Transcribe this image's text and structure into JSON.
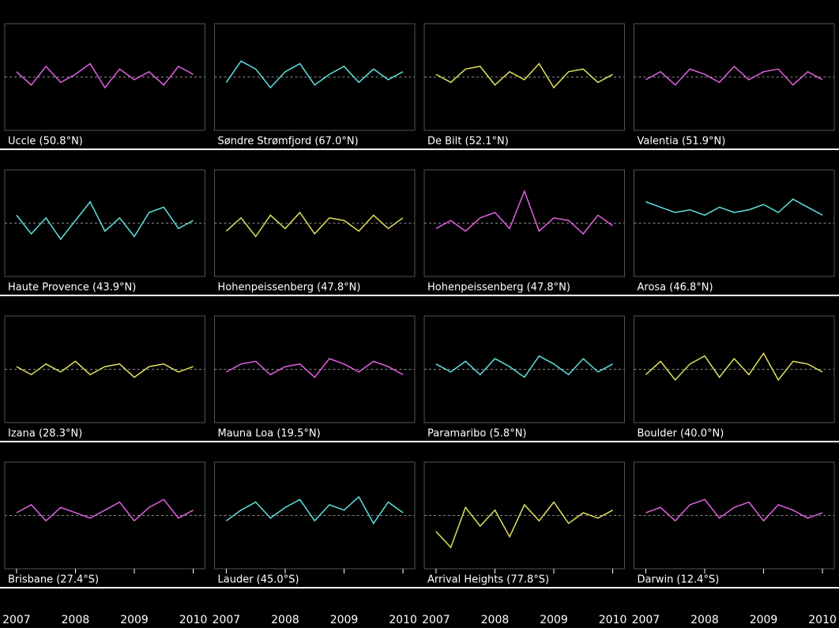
{
  "chart_data": [
    {
      "type": "line",
      "title": "Uccle (50.8°N)",
      "x": [
        2007,
        2007.25,
        2007.5,
        2007.75,
        2008,
        2008.25,
        2008.5,
        2008.75,
        2009,
        2009.25,
        2009.5,
        2009.75,
        2010
      ],
      "values": [
        2,
        -3,
        4,
        -2,
        1,
        5,
        -4,
        3,
        -1,
        2,
        -3,
        4,
        1
      ],
      "color": "#e060e0",
      "xlim": [
        2006.8,
        2010.2
      ],
      "ylim": [
        -20,
        20
      ]
    },
    {
      "type": "line",
      "title": "Søndre Strømfjord (67.0°N)",
      "x": [
        2007,
        2007.25,
        2007.5,
        2007.75,
        2008,
        2008.25,
        2008.5,
        2008.75,
        2009,
        2009.25,
        2009.5,
        2009.75,
        2010
      ],
      "values": [
        -2,
        6,
        3,
        -4,
        2,
        5,
        -3,
        1,
        4,
        -2,
        3,
        -1,
        2
      ],
      "color": "#60e0e0",
      "xlim": [
        2006.8,
        2010.2
      ],
      "ylim": [
        -20,
        20
      ]
    },
    {
      "type": "line",
      "title": "De Bilt (52.1°N)",
      "x": [
        2007,
        2007.25,
        2007.5,
        2007.75,
        2008,
        2008.25,
        2008.5,
        2008.75,
        2009,
        2009.25,
        2009.5,
        2009.75,
        2010
      ],
      "values": [
        1,
        -2,
        3,
        4,
        -3,
        2,
        -1,
        5,
        -4,
        2,
        3,
        -2,
        1
      ],
      "color": "#e0e060",
      "xlim": [
        2006.8,
        2010.2
      ],
      "ylim": [
        -20,
        20
      ]
    },
    {
      "type": "line",
      "title": "Valentia (51.9°N)",
      "x": [
        2007,
        2007.25,
        2007.5,
        2007.75,
        2008,
        2008.25,
        2008.5,
        2008.75,
        2009,
        2009.25,
        2009.5,
        2009.75,
        2010
      ],
      "values": [
        -1,
        2,
        -3,
        3,
        1,
        -2,
        4,
        -1,
        2,
        3,
        -3,
        2,
        -1
      ],
      "color": "#e060e0",
      "xlim": [
        2006.8,
        2010.2
      ],
      "ylim": [
        -20,
        20
      ]
    },
    {
      "type": "line",
      "title": "Haute Provence (43.9°N)",
      "x": [
        2007,
        2007.25,
        2007.5,
        2007.75,
        2008,
        2008.25,
        2008.5,
        2008.75,
        2009,
        2009.25,
        2009.5,
        2009.75,
        2010
      ],
      "values": [
        3,
        -4,
        2,
        -6,
        1,
        8,
        -3,
        2,
        -5,
        4,
        6,
        -2,
        1
      ],
      "color": "#60e0e0",
      "xlim": [
        2006.8,
        2010.2
      ],
      "ylim": [
        -20,
        20
      ]
    },
    {
      "type": "line",
      "title": "Hohenpeissenberg (47.8°N)",
      "x": [
        2007,
        2007.25,
        2007.5,
        2007.75,
        2008,
        2008.25,
        2008.5,
        2008.75,
        2009,
        2009.25,
        2009.5,
        2009.75,
        2010
      ],
      "values": [
        -3,
        2,
        -5,
        3,
        -2,
        4,
        -4,
        2,
        1,
        -3,
        3,
        -2,
        2
      ],
      "color": "#e0e060",
      "xlim": [
        2006.8,
        2010.2
      ],
      "ylim": [
        -20,
        20
      ]
    },
    {
      "type": "line",
      "title": "Hohenpeissenberg (47.8°N)",
      "x": [
        2007,
        2007.25,
        2007.5,
        2007.75,
        2008,
        2008.25,
        2008.5,
        2008.75,
        2009,
        2009.25,
        2009.5,
        2009.75,
        2010
      ],
      "values": [
        -2,
        1,
        -3,
        2,
        4,
        -2,
        12,
        -3,
        2,
        1,
        -4,
        3,
        -1
      ],
      "color": "#e060e0",
      "xlim": [
        2006.8,
        2010.2
      ],
      "ylim": [
        -20,
        20
      ]
    },
    {
      "type": "line",
      "title": "Arosa (46.8°N)",
      "x": [
        2007,
        2007.25,
        2007.5,
        2007.75,
        2008,
        2008.25,
        2008.5,
        2008.75,
        2009,
        2009.25,
        2009.5,
        2009.75,
        2010
      ],
      "values": [
        8,
        6,
        4,
        5,
        3,
        6,
        4,
        5,
        7,
        4,
        9,
        6,
        3
      ],
      "color": "#60e0e0",
      "xlim": [
        2006.8,
        2010.2
      ],
      "ylim": [
        -20,
        20
      ]
    },
    {
      "type": "line",
      "title": "Izana (28.3°N)",
      "x": [
        2007,
        2007.25,
        2007.5,
        2007.75,
        2008,
        2008.25,
        2008.5,
        2008.75,
        2009,
        2009.25,
        2009.5,
        2009.75,
        2010
      ],
      "values": [
        1,
        -2,
        2,
        -1,
        3,
        -2,
        1,
        2,
        -3,
        1,
        2,
        -1,
        1
      ],
      "color": "#e0e060",
      "xlim": [
        2006.8,
        2010.2
      ],
      "ylim": [
        -20,
        20
      ]
    },
    {
      "type": "line",
      "title": "Mauna Loa (19.5°N)",
      "x": [
        2007,
        2007.25,
        2007.5,
        2007.75,
        2008,
        2008.25,
        2008.5,
        2008.75,
        2009,
        2009.25,
        2009.5,
        2009.75,
        2010
      ],
      "values": [
        -1,
        2,
        3,
        -2,
        1,
        2,
        -3,
        4,
        2,
        -1,
        3,
        1,
        -2
      ],
      "color": "#e060e0",
      "xlim": [
        2006.8,
        2010.2
      ],
      "ylim": [
        -20,
        20
      ]
    },
    {
      "type": "line",
      "title": "Paramaribo (5.8°N)",
      "x": [
        2007,
        2007.25,
        2007.5,
        2007.75,
        2008,
        2008.25,
        2008.5,
        2008.75,
        2009,
        2009.25,
        2009.5,
        2009.75,
        2010
      ],
      "values": [
        2,
        -1,
        3,
        -2,
        4,
        1,
        -3,
        5,
        2,
        -2,
        4,
        -1,
        2
      ],
      "color": "#60e0e0",
      "xlim": [
        2006.8,
        2010.2
      ],
      "ylim": [
        -20,
        20
      ]
    },
    {
      "type": "line",
      "title": "Boulder (40.0°N)",
      "x": [
        2007,
        2007.25,
        2007.5,
        2007.75,
        2008,
        2008.25,
        2008.5,
        2008.75,
        2009,
        2009.25,
        2009.5,
        2009.75,
        2010
      ],
      "values": [
        -2,
        3,
        -4,
        2,
        5,
        -3,
        4,
        -2,
        6,
        -4,
        3,
        2,
        -1
      ],
      "color": "#e0e060",
      "xlim": [
        2006.8,
        2010.2
      ],
      "ylim": [
        -20,
        20
      ]
    },
    {
      "type": "line",
      "title": "Brisbane (27.4°S)",
      "x": [
        2007,
        2007.25,
        2007.5,
        2007.75,
        2008,
        2008.25,
        2008.5,
        2008.75,
        2009,
        2009.25,
        2009.5,
        2009.75,
        2010
      ],
      "values": [
        1,
        4,
        -2,
        3,
        1,
        -1,
        2,
        5,
        -2,
        3,
        6,
        -1,
        2
      ],
      "color": "#e060e0",
      "xlim": [
        2006.8,
        2010.2
      ],
      "ylim": [
        -20,
        20
      ],
      "xticks": [
        2007,
        2008,
        2009,
        2010
      ]
    },
    {
      "type": "line",
      "title": "Lauder (45.0°S)",
      "x": [
        2007,
        2007.25,
        2007.5,
        2007.75,
        2008,
        2008.25,
        2008.5,
        2008.75,
        2009,
        2009.25,
        2009.5,
        2009.75,
        2010
      ],
      "values": [
        -2,
        2,
        5,
        -1,
        3,
        6,
        -2,
        4,
        2,
        7,
        -3,
        5,
        1
      ],
      "color": "#60e0e0",
      "xlim": [
        2006.8,
        2010.2
      ],
      "ylim": [
        -20,
        20
      ],
      "xticks": [
        2007,
        2008,
        2009,
        2010
      ]
    },
    {
      "type": "line",
      "title": "Arrival Heights (77.8°S)",
      "x": [
        2007,
        2007.25,
        2007.5,
        2007.75,
        2008,
        2008.25,
        2008.5,
        2008.75,
        2009,
        2009.25,
        2009.5,
        2009.75,
        2010
      ],
      "values": [
        -6,
        -12,
        3,
        -4,
        2,
        -8,
        4,
        -2,
        5,
        -3,
        1,
        -1,
        2
      ],
      "color": "#e0e060",
      "xlim": [
        2006.8,
        2010.2
      ],
      "ylim": [
        -20,
        20
      ],
      "xticks": [
        2007,
        2008,
        2009,
        2010
      ]
    },
    {
      "type": "line",
      "title": "Darwin (12.4°S)",
      "x": [
        2007,
        2007.25,
        2007.5,
        2007.75,
        2008,
        2008.25,
        2008.5,
        2008.75,
        2009,
        2009.25,
        2009.5,
        2009.75,
        2010
      ],
      "values": [
        1,
        3,
        -2,
        4,
        6,
        -1,
        3,
        5,
        -2,
        4,
        2,
        -1,
        1
      ],
      "color": "#e060e0",
      "xlim": [
        2006.8,
        2010.2
      ],
      "ylim": [
        -20,
        20
      ],
      "xticks": [
        2007,
        2008,
        2009,
        2010
      ]
    }
  ]
}
